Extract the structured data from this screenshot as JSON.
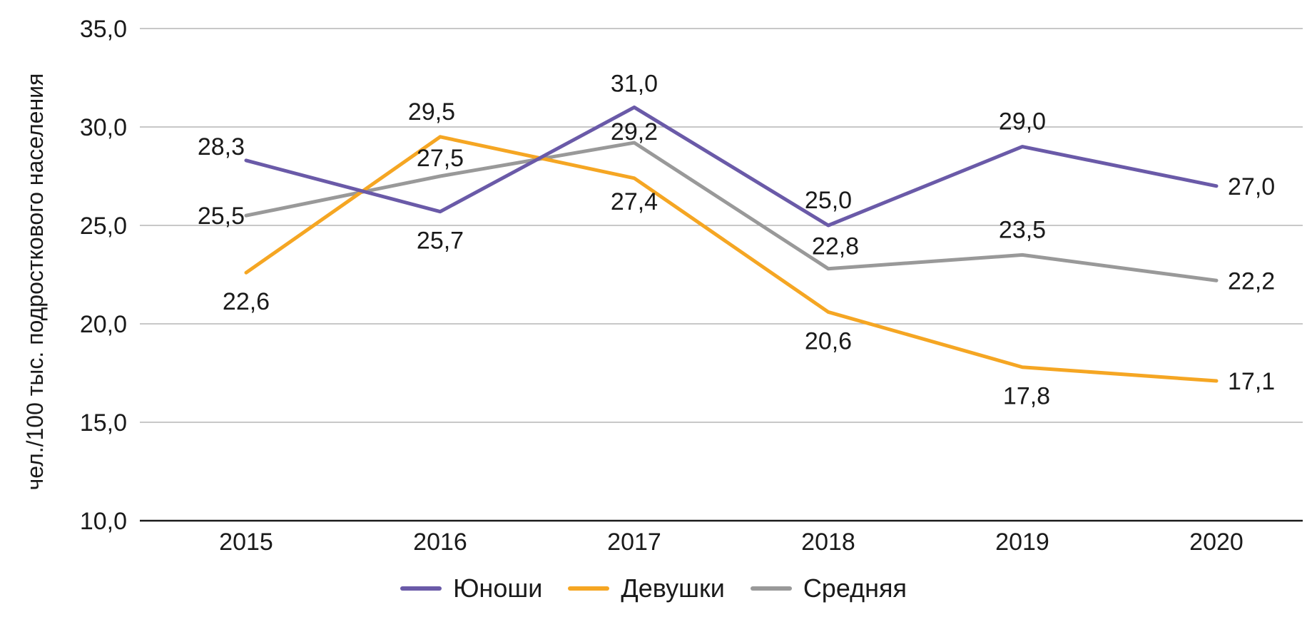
{
  "chart_data": {
    "type": "line",
    "categories": [
      "2015",
      "2016",
      "2017",
      "2018",
      "2019",
      "2020"
    ],
    "series": [
      {
        "name": "Юноши",
        "color": "#6a5aa8",
        "values": [
          28.3,
          25.7,
          31.0,
          25.0,
          29.0,
          27.0
        ],
        "labels": [
          "28,3",
          "25,7",
          "31,0",
          "25,0",
          "29,0",
          "27,0"
        ]
      },
      {
        "name": "Девушки",
        "color": "#f5a623",
        "values": [
          22.6,
          29.5,
          27.4,
          20.6,
          17.8,
          17.1
        ],
        "labels": [
          "22,6",
          "29,5",
          "27,4",
          "20,6",
          "17,8",
          "17,1"
        ]
      },
      {
        "name": "Средняя",
        "color": "#999999",
        "values": [
          25.5,
          27.5,
          29.2,
          22.8,
          23.5,
          22.2
        ],
        "labels": [
          "25,5",
          "27,5",
          "29,2",
          "22,8",
          "23,5",
          "22,2"
        ]
      }
    ],
    "ylabel": "чел./100 тыс. подросткового населения",
    "ylim": [
      10,
      35
    ],
    "yticks": [
      "10,0",
      "15,0",
      "20,0",
      "25,0",
      "30,0",
      "35,0"
    ],
    "ytick_values": [
      10,
      15,
      20,
      25,
      30,
      35
    ],
    "grid": true,
    "legend_position": "bottom-center"
  }
}
